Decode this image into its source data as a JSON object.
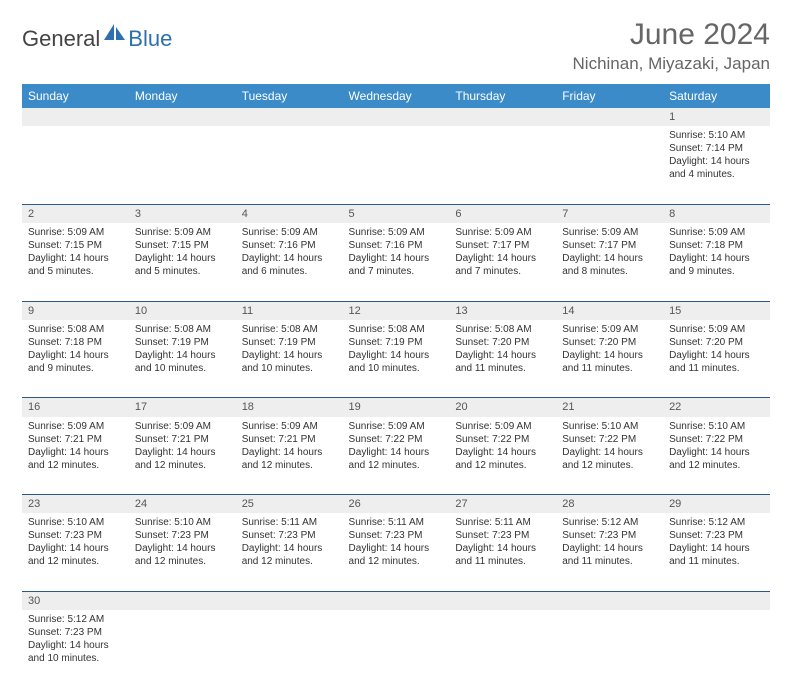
{
  "logo": {
    "part1": "General",
    "part2": "Blue"
  },
  "title": "June 2024",
  "location": "Nichinan, Miyazaki, Japan",
  "weekdays": [
    "Sunday",
    "Monday",
    "Tuesday",
    "Wednesday",
    "Thursday",
    "Friday",
    "Saturday"
  ],
  "colors": {
    "header_bg": "#3b8bc8",
    "header_fg": "#ffffff",
    "rule": "#2a5a8a",
    "daynum_bg": "#eeeeee",
    "logo_blue": "#2e6fb0",
    "title_color": "#666666"
  },
  "weeks": [
    [
      null,
      null,
      null,
      null,
      null,
      null,
      {
        "n": "1",
        "sr": "Sunrise: 5:10 AM",
        "ss": "Sunset: 7:14 PM",
        "d1": "Daylight: 14 hours",
        "d2": "and 4 minutes."
      }
    ],
    [
      {
        "n": "2",
        "sr": "Sunrise: 5:09 AM",
        "ss": "Sunset: 7:15 PM",
        "d1": "Daylight: 14 hours",
        "d2": "and 5 minutes."
      },
      {
        "n": "3",
        "sr": "Sunrise: 5:09 AM",
        "ss": "Sunset: 7:15 PM",
        "d1": "Daylight: 14 hours",
        "d2": "and 5 minutes."
      },
      {
        "n": "4",
        "sr": "Sunrise: 5:09 AM",
        "ss": "Sunset: 7:16 PM",
        "d1": "Daylight: 14 hours",
        "d2": "and 6 minutes."
      },
      {
        "n": "5",
        "sr": "Sunrise: 5:09 AM",
        "ss": "Sunset: 7:16 PM",
        "d1": "Daylight: 14 hours",
        "d2": "and 7 minutes."
      },
      {
        "n": "6",
        "sr": "Sunrise: 5:09 AM",
        "ss": "Sunset: 7:17 PM",
        "d1": "Daylight: 14 hours",
        "d2": "and 7 minutes."
      },
      {
        "n": "7",
        "sr": "Sunrise: 5:09 AM",
        "ss": "Sunset: 7:17 PM",
        "d1": "Daylight: 14 hours",
        "d2": "and 8 minutes."
      },
      {
        "n": "8",
        "sr": "Sunrise: 5:09 AM",
        "ss": "Sunset: 7:18 PM",
        "d1": "Daylight: 14 hours",
        "d2": "and 9 minutes."
      }
    ],
    [
      {
        "n": "9",
        "sr": "Sunrise: 5:08 AM",
        "ss": "Sunset: 7:18 PM",
        "d1": "Daylight: 14 hours",
        "d2": "and 9 minutes."
      },
      {
        "n": "10",
        "sr": "Sunrise: 5:08 AM",
        "ss": "Sunset: 7:19 PM",
        "d1": "Daylight: 14 hours",
        "d2": "and 10 minutes."
      },
      {
        "n": "11",
        "sr": "Sunrise: 5:08 AM",
        "ss": "Sunset: 7:19 PM",
        "d1": "Daylight: 14 hours",
        "d2": "and 10 minutes."
      },
      {
        "n": "12",
        "sr": "Sunrise: 5:08 AM",
        "ss": "Sunset: 7:19 PM",
        "d1": "Daylight: 14 hours",
        "d2": "and 10 minutes."
      },
      {
        "n": "13",
        "sr": "Sunrise: 5:08 AM",
        "ss": "Sunset: 7:20 PM",
        "d1": "Daylight: 14 hours",
        "d2": "and 11 minutes."
      },
      {
        "n": "14",
        "sr": "Sunrise: 5:09 AM",
        "ss": "Sunset: 7:20 PM",
        "d1": "Daylight: 14 hours",
        "d2": "and 11 minutes."
      },
      {
        "n": "15",
        "sr": "Sunrise: 5:09 AM",
        "ss": "Sunset: 7:20 PM",
        "d1": "Daylight: 14 hours",
        "d2": "and 11 minutes."
      }
    ],
    [
      {
        "n": "16",
        "sr": "Sunrise: 5:09 AM",
        "ss": "Sunset: 7:21 PM",
        "d1": "Daylight: 14 hours",
        "d2": "and 12 minutes."
      },
      {
        "n": "17",
        "sr": "Sunrise: 5:09 AM",
        "ss": "Sunset: 7:21 PM",
        "d1": "Daylight: 14 hours",
        "d2": "and 12 minutes."
      },
      {
        "n": "18",
        "sr": "Sunrise: 5:09 AM",
        "ss": "Sunset: 7:21 PM",
        "d1": "Daylight: 14 hours",
        "d2": "and 12 minutes."
      },
      {
        "n": "19",
        "sr": "Sunrise: 5:09 AM",
        "ss": "Sunset: 7:22 PM",
        "d1": "Daylight: 14 hours",
        "d2": "and 12 minutes."
      },
      {
        "n": "20",
        "sr": "Sunrise: 5:09 AM",
        "ss": "Sunset: 7:22 PM",
        "d1": "Daylight: 14 hours",
        "d2": "and 12 minutes."
      },
      {
        "n": "21",
        "sr": "Sunrise: 5:10 AM",
        "ss": "Sunset: 7:22 PM",
        "d1": "Daylight: 14 hours",
        "d2": "and 12 minutes."
      },
      {
        "n": "22",
        "sr": "Sunrise: 5:10 AM",
        "ss": "Sunset: 7:22 PM",
        "d1": "Daylight: 14 hours",
        "d2": "and 12 minutes."
      }
    ],
    [
      {
        "n": "23",
        "sr": "Sunrise: 5:10 AM",
        "ss": "Sunset: 7:23 PM",
        "d1": "Daylight: 14 hours",
        "d2": "and 12 minutes."
      },
      {
        "n": "24",
        "sr": "Sunrise: 5:10 AM",
        "ss": "Sunset: 7:23 PM",
        "d1": "Daylight: 14 hours",
        "d2": "and 12 minutes."
      },
      {
        "n": "25",
        "sr": "Sunrise: 5:11 AM",
        "ss": "Sunset: 7:23 PM",
        "d1": "Daylight: 14 hours",
        "d2": "and 12 minutes."
      },
      {
        "n": "26",
        "sr": "Sunrise: 5:11 AM",
        "ss": "Sunset: 7:23 PM",
        "d1": "Daylight: 14 hours",
        "d2": "and 12 minutes."
      },
      {
        "n": "27",
        "sr": "Sunrise: 5:11 AM",
        "ss": "Sunset: 7:23 PM",
        "d1": "Daylight: 14 hours",
        "d2": "and 11 minutes."
      },
      {
        "n": "28",
        "sr": "Sunrise: 5:12 AM",
        "ss": "Sunset: 7:23 PM",
        "d1": "Daylight: 14 hours",
        "d2": "and 11 minutes."
      },
      {
        "n": "29",
        "sr": "Sunrise: 5:12 AM",
        "ss": "Sunset: 7:23 PM",
        "d1": "Daylight: 14 hours",
        "d2": "and 11 minutes."
      }
    ],
    [
      {
        "n": "30",
        "sr": "Sunrise: 5:12 AM",
        "ss": "Sunset: 7:23 PM",
        "d1": "Daylight: 14 hours",
        "d2": "and 10 minutes."
      },
      null,
      null,
      null,
      null,
      null,
      null
    ]
  ]
}
